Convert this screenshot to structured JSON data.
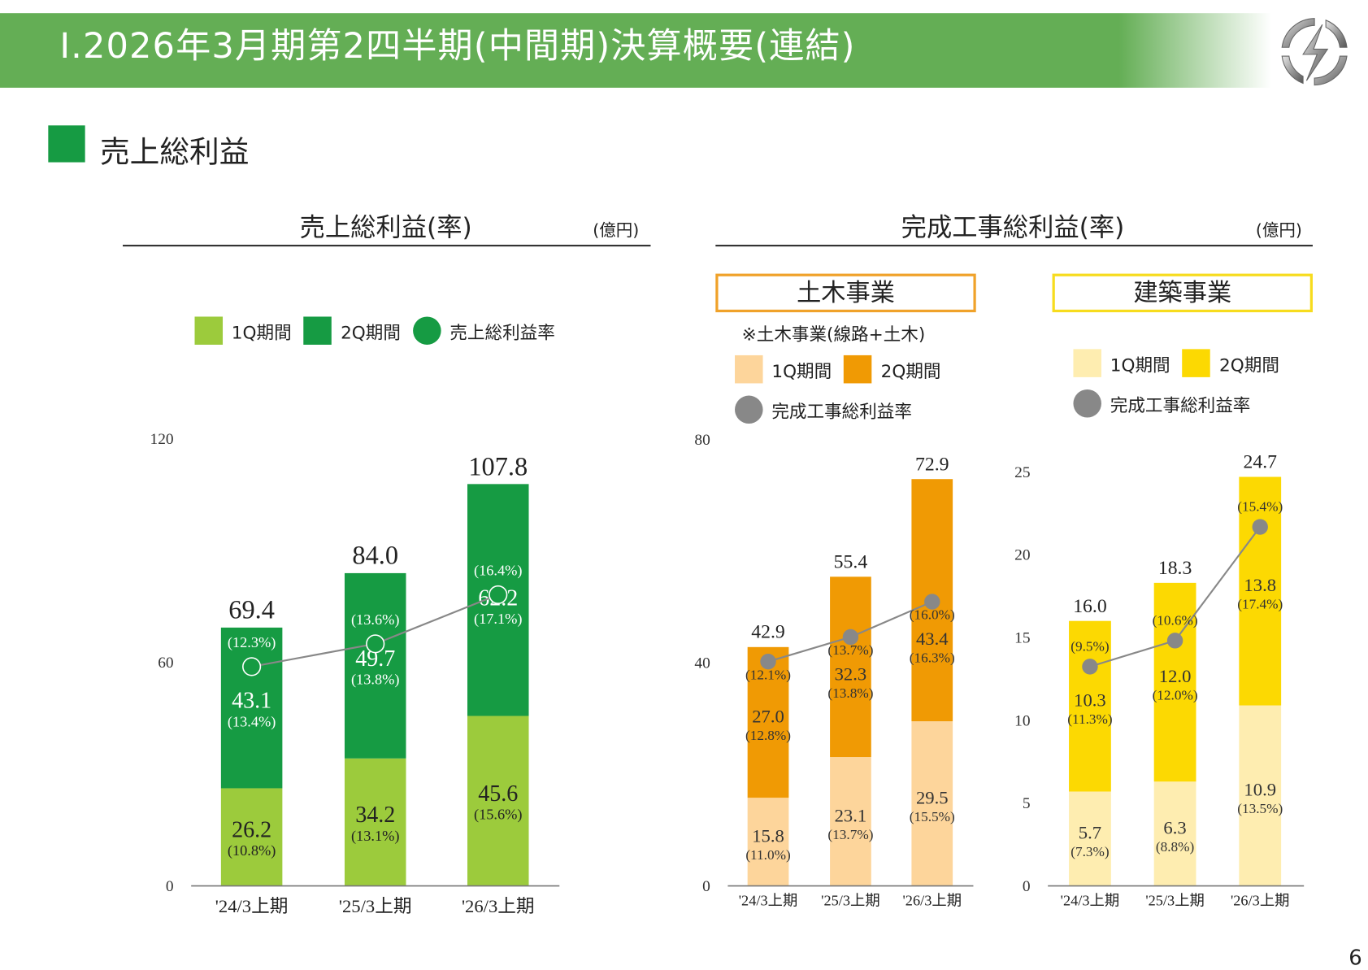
{
  "header": {
    "title": "Ⅰ.2026年3月期第2四半期(中間期)決算概要(連結)"
  },
  "logo": {
    "name": "company-logo-lightning-circle"
  },
  "section": {
    "title": "売上総利益",
    "color": "#169b43"
  },
  "left_panel": {
    "title": "売上総利益(率)",
    "unit": "(億円)",
    "legend": {
      "q1": "1Q期間",
      "q2": "2Q期間",
      "rate": "売上総利益率"
    }
  },
  "right_panel": {
    "title": "完成工事総利益(率)",
    "unit": "(億円)",
    "civil": {
      "label": "土木事業",
      "note": "※土木事業(線路+土木)",
      "legend": {
        "q1": "1Q期間",
        "q2": "2Q期間",
        "rate": "完成工事総利益率"
      }
    },
    "building": {
      "label": "建築事業",
      "legend": {
        "q1": "1Q期間",
        "q2": "2Q期間",
        "rate": "完成工事総利益率"
      }
    }
  },
  "page_number": "6",
  "chart_data": [
    {
      "type": "bar",
      "stacked": true,
      "title": "売上総利益(率)",
      "unit": "(億円)",
      "categories": [
        "'24/3上期",
        "'25/3上期",
        "'26/3上期"
      ],
      "ylim": [
        0,
        120
      ],
      "yticks": [
        0,
        60,
        120
      ],
      "series": [
        {
          "name": "1Q期間",
          "values": [
            26.2,
            34.2,
            45.6
          ],
          "rates": [
            "(10.8%)",
            "(13.1%)",
            "(15.6%)"
          ],
          "color": "#9ccb3c"
        },
        {
          "name": "2Q期間",
          "values": [
            43.1,
            49.7,
            62.2
          ],
          "rates": [
            "(13.4%)",
            "(13.8%)",
            "(17.1%)"
          ],
          "color": "#169b43"
        }
      ],
      "totals": [
        69.4,
        84.0,
        107.8
      ],
      "rate_line": {
        "name": "売上総利益率",
        "values": [
          12.3,
          13.6,
          16.4
        ],
        "color": "#888888",
        "marker": "hollow-circle"
      },
      "grid": false
    },
    {
      "type": "bar",
      "stacked": true,
      "title": "土木事業",
      "categories": [
        "'24/3上期",
        "'25/3上期",
        "'26/3上期"
      ],
      "ylim": [
        0,
        80
      ],
      "yticks": [
        0,
        40,
        80
      ],
      "series": [
        {
          "name": "1Q期間",
          "values": [
            15.8,
            23.1,
            29.5
          ],
          "rates": [
            "(11.0%)",
            "(13.7%)",
            "(15.5%)"
          ],
          "color": "#fdd59b"
        },
        {
          "name": "2Q期間",
          "values": [
            27.0,
            32.3,
            43.4
          ],
          "rates": [
            "(12.8%)",
            "(13.8%)",
            "(16.3%)"
          ],
          "color": "#f09a04"
        }
      ],
      "totals": [
        42.9,
        55.4,
        72.9
      ],
      "rate_line": {
        "name": "完成工事総利益率",
        "values": [
          12.1,
          13.7,
          16.0
        ],
        "color": "#888888",
        "marker": "filled-circle"
      },
      "grid": false
    },
    {
      "type": "bar",
      "stacked": true,
      "title": "建築事業",
      "categories": [
        "'24/3上期",
        "'25/3上期",
        "'26/3上期"
      ],
      "ylim": [
        0,
        25
      ],
      "yticks": [
        0,
        5,
        10,
        15,
        20,
        25
      ],
      "series": [
        {
          "name": "1Q期間",
          "values": [
            5.7,
            6.3,
            10.9
          ],
          "rates": [
            "(7.3%)",
            "(8.8%)",
            "(13.5%)"
          ],
          "color": "#feedb0"
        },
        {
          "name": "2Q期間",
          "values": [
            10.3,
            12.0,
            13.8
          ],
          "rates": [
            "(11.3%)",
            "(12.0%)",
            "(17.4%)"
          ],
          "color": "#fcd902"
        }
      ],
      "totals": [
        16.0,
        18.3,
        24.7
      ],
      "rate_line": {
        "name": "完成工事総利益率",
        "values": [
          9.5,
          10.6,
          15.4
        ],
        "color": "#888888",
        "marker": "filled-circle"
      },
      "grid": false
    }
  ]
}
